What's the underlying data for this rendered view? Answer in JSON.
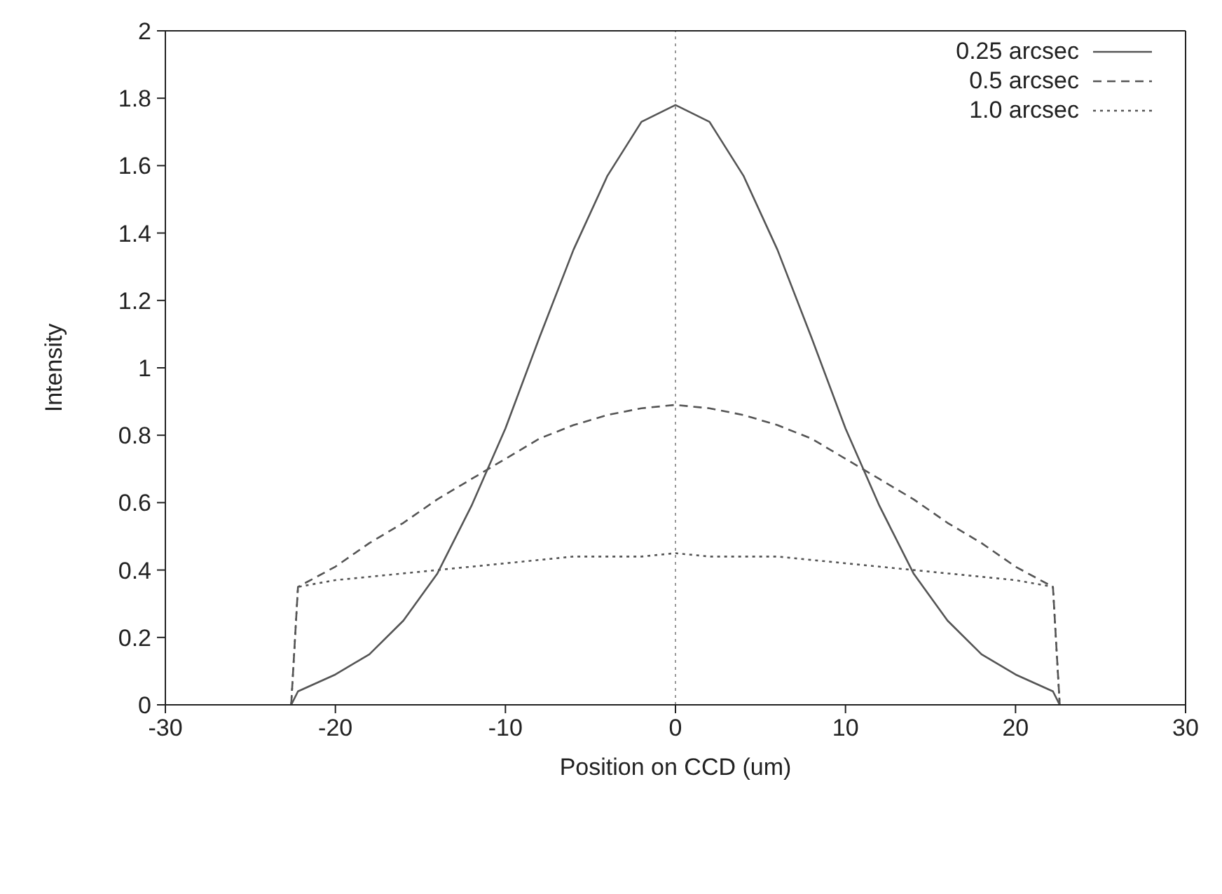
{
  "chart_data": {
    "type": "line",
    "xlabel": "Position on CCD (um)",
    "ylabel": "Intensity",
    "xlim": [
      -30,
      30
    ],
    "xticks": [
      -30,
      -20,
      -10,
      0,
      10,
      20,
      30
    ],
    "ylim": [
      0,
      2
    ],
    "yticks": [
      0,
      0.2,
      0.4,
      0.6,
      0.8,
      1,
      1.2,
      1.4,
      1.6,
      1.8,
      2
    ],
    "grid": false,
    "legend": "top right",
    "marker": "none",
    "ref_lines": [
      {
        "axis": "x",
        "value": 0,
        "color": "#999999",
        "line_style": "dotted"
      }
    ],
    "series": [
      {
        "name": "0.25 arcsec",
        "color": "#555555",
        "line_style": "solid",
        "x": [
          -22.6,
          -22.2,
          -20,
          -18,
          -16,
          -14,
          -12,
          -10,
          -8,
          -6,
          -4,
          -2,
          0,
          2,
          4,
          6,
          8,
          10,
          12,
          14,
          16,
          18,
          20,
          22.2,
          22.6
        ],
        "values": [
          0,
          0.04,
          0.09,
          0.15,
          0.25,
          0.39,
          0.59,
          0.82,
          1.09,
          1.35,
          1.57,
          1.73,
          1.78,
          1.73,
          1.57,
          1.35,
          1.09,
          0.82,
          0.59,
          0.39,
          0.25,
          0.15,
          0.09,
          0.04,
          0
        ]
      },
      {
        "name": "0.5 arcsec",
        "color": "#555555",
        "line_style": "dashed",
        "x": [
          -22.6,
          -22.2,
          -20,
          -18,
          -16,
          -14,
          -12,
          -10,
          -8,
          -6,
          -4,
          -2,
          0,
          2,
          4,
          6,
          8,
          10,
          12,
          14,
          16,
          18,
          20,
          22.2,
          22.6
        ],
        "values": [
          0,
          0.35,
          0.41,
          0.48,
          0.54,
          0.61,
          0.67,
          0.73,
          0.79,
          0.83,
          0.86,
          0.88,
          0.89,
          0.88,
          0.86,
          0.83,
          0.79,
          0.73,
          0.67,
          0.61,
          0.54,
          0.48,
          0.41,
          0.35,
          0
        ]
      },
      {
        "name": "1.0 arcsec",
        "color": "#555555",
        "line_style": "dotted",
        "x": [
          -22.6,
          -22.2,
          -20,
          -18,
          -16,
          -14,
          -12,
          -10,
          -8,
          -6,
          -4,
          -2,
          0,
          2,
          4,
          6,
          8,
          10,
          12,
          14,
          16,
          18,
          20,
          22.2,
          22.6
        ],
        "values": [
          0,
          0.35,
          0.37,
          0.38,
          0.39,
          0.4,
          0.41,
          0.42,
          0.43,
          0.44,
          0.44,
          0.44,
          0.45,
          0.44,
          0.44,
          0.44,
          0.43,
          0.42,
          0.41,
          0.4,
          0.39,
          0.38,
          0.37,
          0.35,
          0
        ]
      }
    ]
  }
}
